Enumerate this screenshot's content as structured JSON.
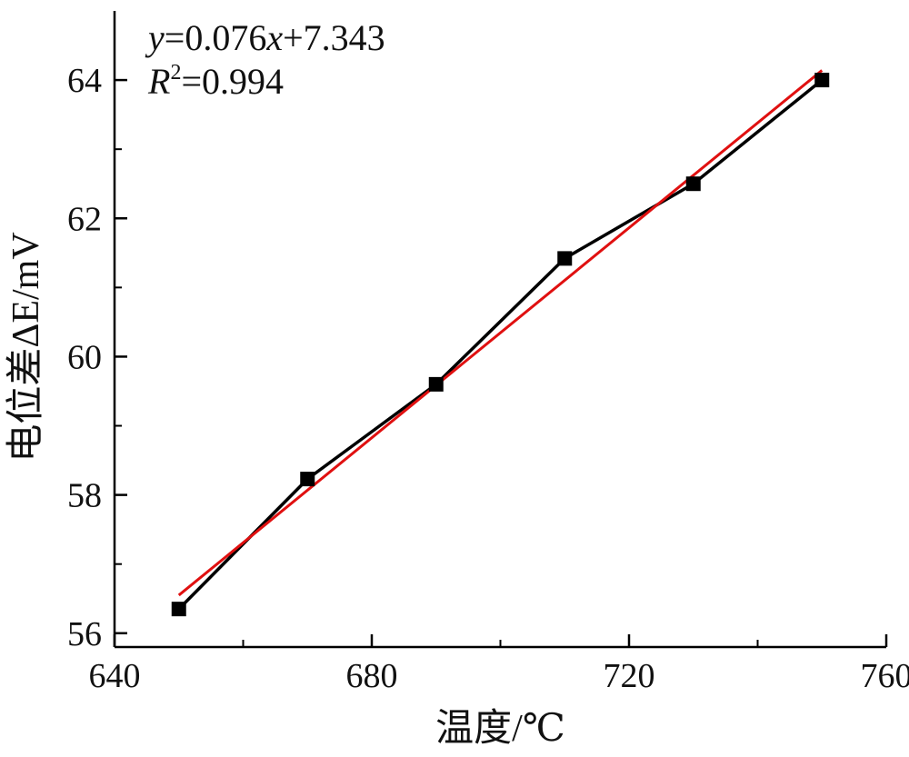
{
  "chart_data": {
    "type": "line",
    "xlabel": "温度/℃",
    "ylabel": "电位差ΔE/mV",
    "xlim": [
      640,
      760
    ],
    "ylim": [
      55.8,
      65
    ],
    "x_ticks": [
      640,
      680,
      720,
      760
    ],
    "y_ticks": [
      56,
      58,
      60,
      62,
      64
    ],
    "grid": false,
    "series": [
      {
        "kind": "line-markers",
        "color": "#000000",
        "marker": "square",
        "x": [
          650,
          670,
          690,
          710,
          730,
          750
        ],
        "y": [
          56.35,
          58.23,
          59.6,
          61.42,
          62.5,
          64.0
        ]
      },
      {
        "kind": "fit",
        "color": "#e01010",
        "x": [
          650,
          750
        ],
        "y": [
          56.55,
          64.14
        ]
      }
    ],
    "annotation": {
      "line1": "y=0.076x+7.343",
      "line2": "R2=0.994",
      "eq_y": "y",
      "eq_mid": "=0.076",
      "eq_x": "x",
      "eq_end": "+7.343",
      "r_R": "R",
      "r_sup": "2",
      "r_val": "=0.994"
    }
  }
}
